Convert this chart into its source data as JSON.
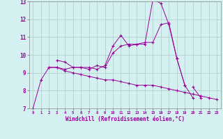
{
  "xlabel": "Windchill (Refroidissement éolien,°C)",
  "bg_color": "#d4f0f0",
  "line_color": "#990099",
  "grid_color": "#aaddcc",
  "xlim": [
    -0.5,
    23.5
  ],
  "ylim": [
    7,
    13
  ],
  "xticks": [
    0,
    1,
    2,
    3,
    4,
    5,
    6,
    7,
    8,
    9,
    10,
    11,
    12,
    13,
    14,
    15,
    16,
    17,
    18,
    19,
    20,
    21,
    22,
    23
  ],
  "yticks": [
    7,
    8,
    9,
    10,
    11,
    12,
    13
  ],
  "series": [
    {
      "x": [
        0,
        1,
        2,
        3,
        4,
        5,
        6,
        7,
        8,
        9,
        10,
        11,
        12,
        13,
        14,
        15,
        16,
        17,
        18,
        19,
        20
      ],
      "y": [
        7.0,
        8.6,
        9.3,
        9.3,
        9.2,
        9.3,
        9.3,
        9.3,
        9.2,
        9.4,
        10.5,
        11.1,
        10.5,
        10.6,
        10.6,
        13.1,
        12.9,
        11.7,
        9.8,
        8.3,
        7.6
      ]
    },
    {
      "x": [
        3,
        4,
        5,
        6,
        7,
        8,
        9,
        10,
        11,
        12,
        13,
        14,
        15,
        16,
        17,
        18,
        19
      ],
      "y": [
        9.7,
        9.6,
        9.3,
        9.3,
        9.2,
        9.4,
        9.3,
        10.1,
        10.5,
        10.6,
        10.6,
        10.7,
        10.7,
        11.7,
        11.8,
        9.8,
        8.3
      ]
    },
    {
      "x": [
        20,
        21
      ],
      "y": [
        8.2,
        7.6
      ]
    },
    {
      "x": [
        2,
        3,
        4,
        5,
        6,
        7,
        8,
        9,
        10,
        11,
        12,
        13,
        14,
        15,
        16,
        17,
        18,
        19,
        20,
        21,
        22,
        23
      ],
      "y": [
        9.3,
        9.3,
        9.1,
        9.0,
        8.9,
        8.8,
        8.7,
        8.6,
        8.6,
        8.5,
        8.4,
        8.3,
        8.3,
        8.3,
        8.2,
        8.1,
        8.0,
        7.9,
        7.8,
        7.7,
        7.6,
        7.5
      ]
    }
  ]
}
